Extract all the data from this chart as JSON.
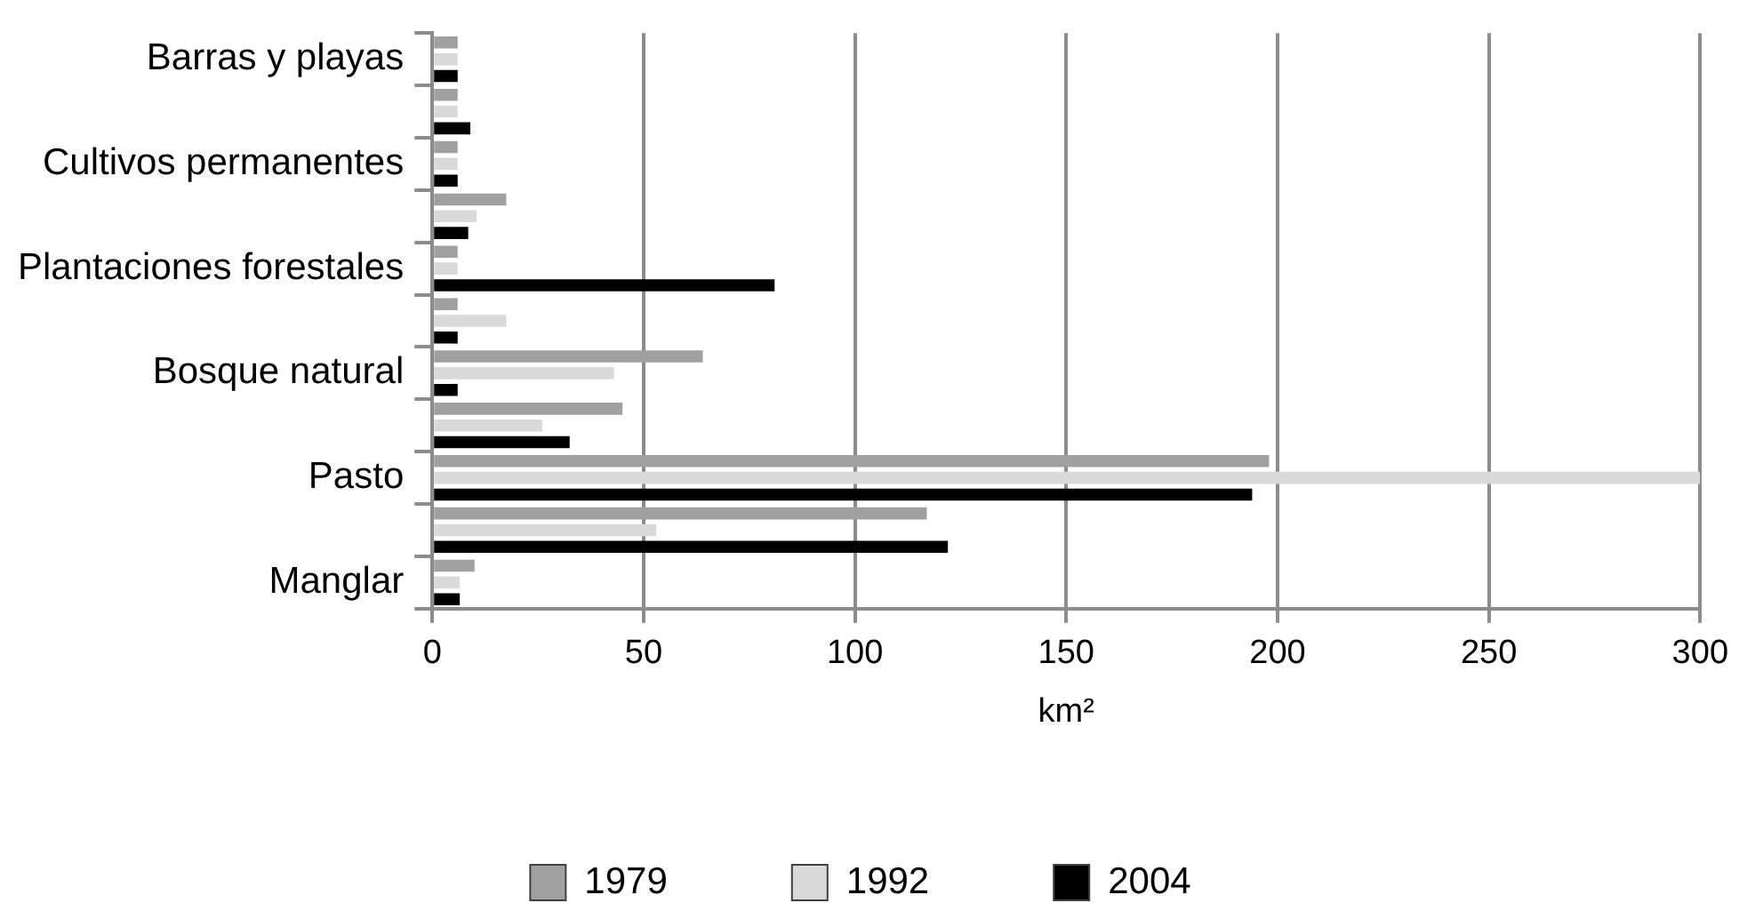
{
  "chart_data": {
    "type": "bar",
    "orientation": "horizontal",
    "xlabel": "km²",
    "categories": [
      "Barras y playas",
      null,
      "Cultivos permanentes",
      null,
      "Plantaciones forestales",
      null,
      "Bosque natural",
      null,
      "Pasto",
      null,
      "Manglar"
    ],
    "series": [
      {
        "name": "1979",
        "color": "#a0a0a0",
        "values": [
          6,
          6,
          6,
          17.5,
          6,
          6,
          64,
          45,
          198,
          117,
          10
        ]
      },
      {
        "name": "1992",
        "color": "#d9d9d9",
        "values": [
          6,
          6,
          6,
          10.5,
          6,
          17.5,
          43,
          26,
          300,
          53,
          6.5
        ]
      },
      {
        "name": "2004",
        "color": "#000000",
        "values": [
          6,
          9,
          6,
          8.5,
          81,
          6,
          6,
          32.5,
          194,
          122,
          6.5
        ]
      }
    ],
    "xlim": [
      0,
      300
    ],
    "xticks": [
      0,
      50,
      100,
      150,
      200,
      250,
      300
    ],
    "grid": "x",
    "legend": "bottom"
  }
}
